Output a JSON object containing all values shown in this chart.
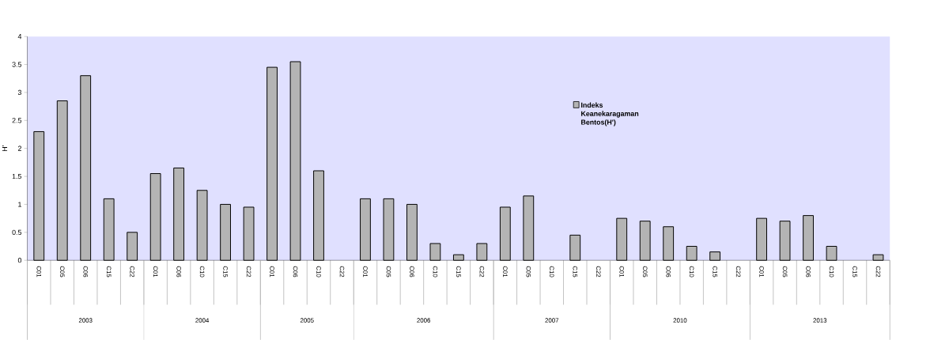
{
  "chart_data": {
    "type": "bar",
    "ylabel": "H'",
    "categories": [
      "C01",
      "C05",
      "C06",
      "C15",
      "C22",
      "C01",
      "C06",
      "C10",
      "C15",
      "C22",
      "C01",
      "C06",
      "C10",
      "C22",
      "C01",
      "C05",
      "C06",
      "C10",
      "C15",
      "C22",
      "C01",
      "C05",
      "C10",
      "C15",
      "C22",
      "C01",
      "C05",
      "C06",
      "C10",
      "C15",
      "C22",
      "C01",
      "C05",
      "C06",
      "C10",
      "C15",
      "C22"
    ],
    "series": [
      {
        "name": "Indeks Keanekaragaman Bentos(H')",
        "color": "#b4b4b4",
        "values": [
          2.3,
          2.85,
          3.3,
          1.1,
          0.5,
          1.55,
          1.65,
          1.25,
          1,
          0.95,
          3.45,
          3.55,
          1.6,
          null,
          1.1,
          1.1,
          1,
          0.3,
          0.1,
          0.3,
          0.95,
          1.15,
          null,
          0.45,
          null,
          0.75,
          0.7,
          0.6,
          0.25,
          0.15,
          null,
          0.75,
          0.7,
          0.8,
          0.25,
          null,
          0.1
        ]
      }
    ],
    "ylim": [
      0,
      4
    ],
    "yticks": [
      0,
      0.5,
      1,
      1.5,
      2,
      2.5,
      3,
      3.5,
      4
    ],
    "annotations": [
      "2003",
      "2004",
      "2005",
      "2006",
      "2007",
      "2010",
      "2013"
    ],
    "legend": "top"
  }
}
